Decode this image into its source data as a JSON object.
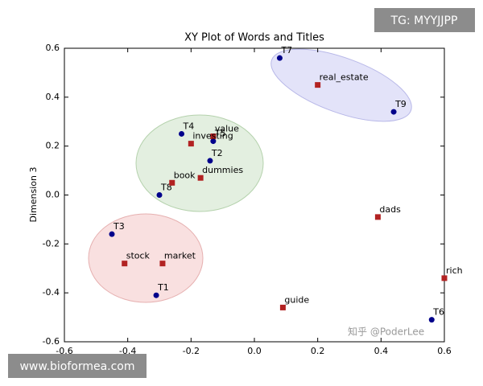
{
  "chart_data": {
    "type": "scatter",
    "title": "XY Plot of Words and Titles",
    "y_label": "Dimension 3",
    "xlim": [
      -0.6,
      0.6
    ],
    "xticks": [
      -0.6,
      -0.4,
      -0.2,
      {
        "value": 0,
        "label": "0.0"
      },
      0.2,
      0.4,
      0.6
    ],
    "ylim": [
      -0.6,
      0.6
    ],
    "yticks": [
      -0.6,
      -0.4,
      -0.2,
      {
        "value": 0,
        "label": "0.0"
      },
      0.2,
      0.4,
      0.6
    ],
    "grid": false,
    "series": [
      {
        "color": "#00008b",
        "marker": "circle",
        "labels": [
          "T7",
          "T9",
          "T4",
          "T5",
          "T2",
          "T8",
          "T3",
          "T1",
          "T6"
        ],
        "x": [
          0.08,
          0.44,
          -0.23,
          -0.13,
          -0.14,
          -0.3,
          -0.45,
          -0.31,
          0.56
        ],
        "values": [
          0.56,
          0.34,
          0.25,
          0.22,
          0.14,
          0.0,
          -0.16,
          -0.41,
          -0.51
        ]
      },
      {
        "color": "#b22222",
        "marker": "square",
        "labels": [
          "real_estate",
          "value",
          "investing",
          "dummies",
          "book",
          "dads",
          "stock",
          "market",
          "rich",
          "guide"
        ],
        "x": [
          0.2,
          -0.13,
          -0.2,
          -0.17,
          -0.26,
          0.39,
          -0.41,
          -0.29,
          0.6,
          0.09
        ],
        "values": [
          0.45,
          0.24,
          0.21,
          0.07,
          0.05,
          -0.09,
          -0.28,
          -0.28,
          -0.34,
          -0.46
        ]
      }
    ]
  },
  "watermarks": [
    "TG: MYYJJPP",
    "www.bioformea.com",
    "知乎 @PoderLee"
  ]
}
